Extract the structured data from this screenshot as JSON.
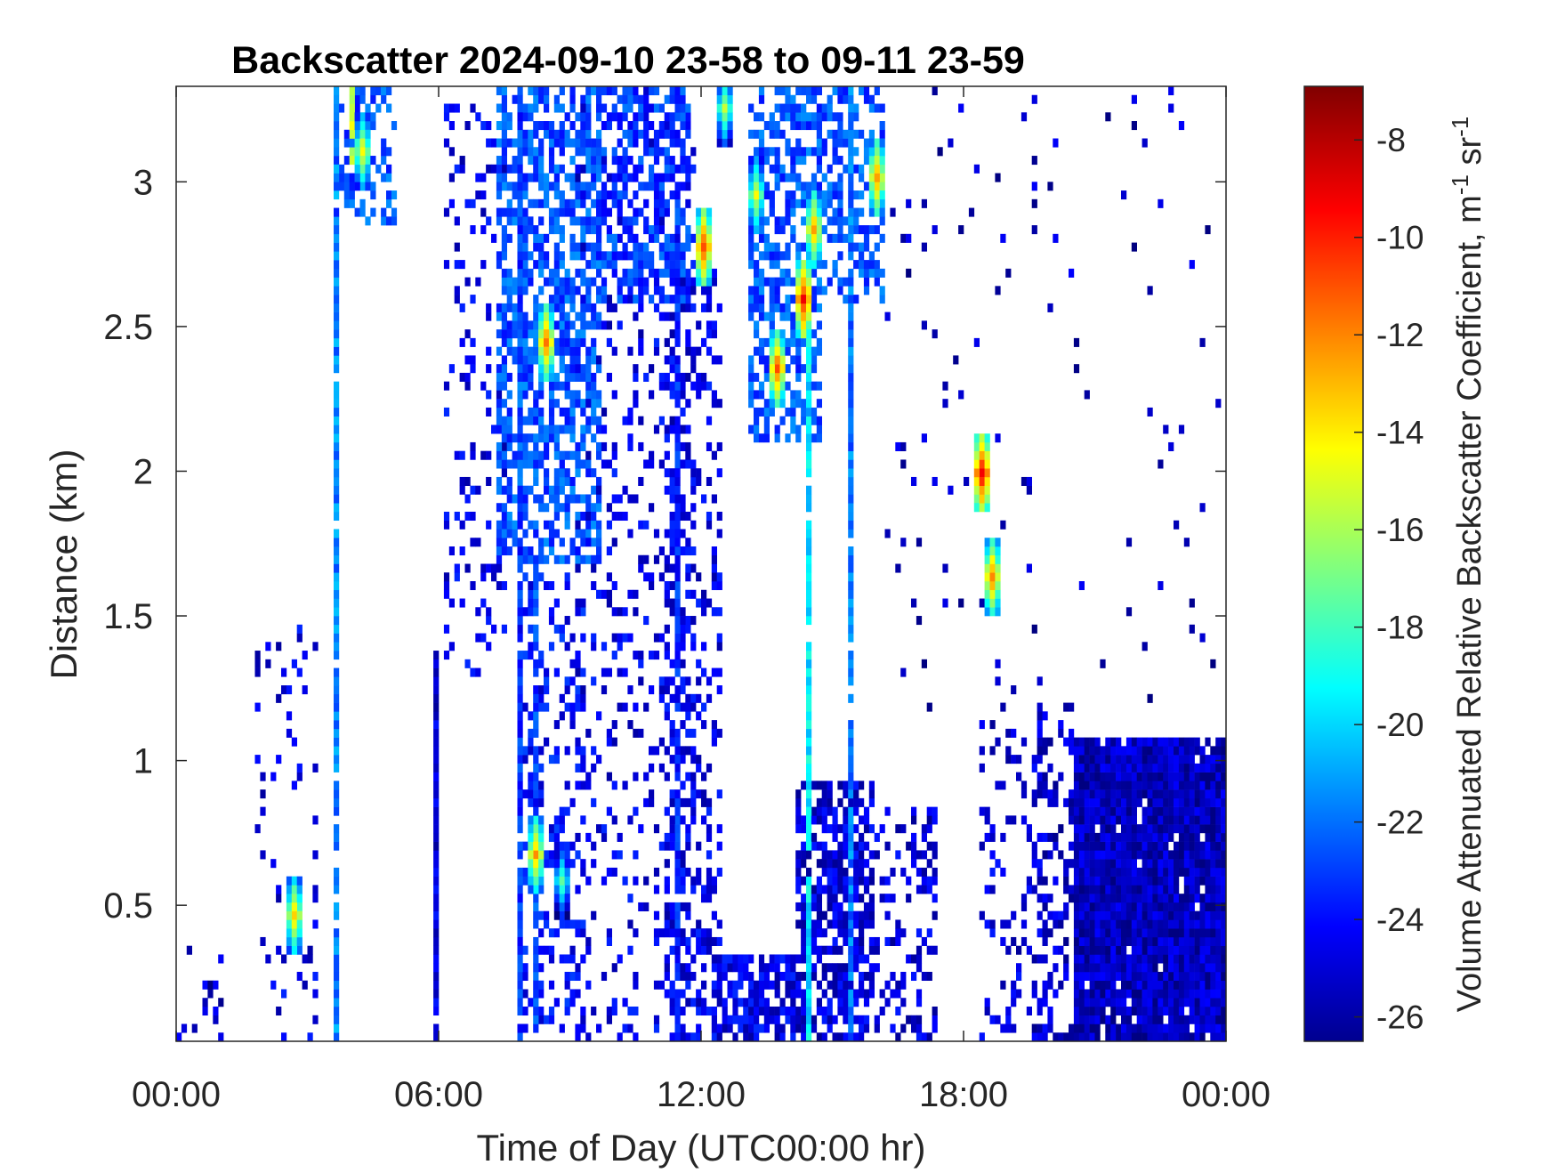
{
  "chart_data": {
    "type": "heatmap",
    "title": "Backscatter 2024-09-10 23-58 to 09-11 23-59",
    "xlabel": "Time of Day (UTC00:00 hr)",
    "ylabel": "Distance (km)",
    "x_range_hours": [
      0,
      24
    ],
    "y_range_km": [
      0.03,
      3.33
    ],
    "x_ticks": [
      {
        "value": 0,
        "label": "00:00"
      },
      {
        "value": 6,
        "label": "06:00"
      },
      {
        "value": 12,
        "label": "12:00"
      },
      {
        "value": 18,
        "label": "18:00"
      },
      {
        "value": 24,
        "label": "00:00"
      }
    ],
    "y_ticks": [
      {
        "value": 0.5,
        "label": "0.5"
      },
      {
        "value": 1,
        "label": "1"
      },
      {
        "value": 1.5,
        "label": "1.5"
      },
      {
        "value": 2,
        "label": "2"
      },
      {
        "value": 2.5,
        "label": "2.5"
      },
      {
        "value": 3,
        "label": "3"
      }
    ],
    "colorbar": {
      "label": "Volume Attenuated Relative Backscatter Coefficient, m",
      "label_sup1": "-1",
      "label_mid": " sr",
      "label_sup2": "-1",
      "range": [
        -26.5,
        -6.9
      ],
      "ticks": [
        {
          "value": -8,
          "label": "-8"
        },
        {
          "value": -10,
          "label": "-10"
        },
        {
          "value": -12,
          "label": "-12"
        },
        {
          "value": -14,
          "label": "-14"
        },
        {
          "value": -16,
          "label": "-16"
        },
        {
          "value": -18,
          "label": "-18"
        },
        {
          "value": -20,
          "label": "-20"
        },
        {
          "value": -22,
          "label": "-22"
        },
        {
          "value": -24,
          "label": "-24"
        },
        {
          "value": -26,
          "label": "-26"
        }
      ],
      "colormap": "jet",
      "colormap_stops": [
        "#00008f",
        "#0000ff",
        "#00ffff",
        "#ffff00",
        "#ff0000",
        "#800000"
      ]
    },
    "grid": false,
    "regions": [
      {
        "t0": 0,
        "t1": 1.2,
        "z0": 0.03,
        "z1": 0.5,
        "density": 0.12,
        "level": -25.2
      },
      {
        "t0": 1.8,
        "t1": 3.3,
        "z0": 0.03,
        "z1": 1.5,
        "density": 0.1,
        "level": -24.6
      },
      {
        "t0": 3.6,
        "t1": 5.1,
        "z0": 2.85,
        "z1": 3.33,
        "density": 0.45,
        "level": -22.5
      },
      {
        "t0": 6.2,
        "t1": 7.6,
        "z0": 1.3,
        "z1": 3.33,
        "density": 0.18,
        "level": -24.5
      },
      {
        "t0": 7.4,
        "t1": 9.8,
        "z0": 1.7,
        "z1": 3.33,
        "density": 0.6,
        "level": -22.5
      },
      {
        "t0": 7.8,
        "t1": 9.4,
        "z0": 0.03,
        "z1": 1.7,
        "density": 0.3,
        "level": -24
      },
      {
        "t0": 9.2,
        "t1": 11.9,
        "z0": 0.03,
        "z1": 3.33,
        "density": 0.18,
        "level": -24.5
      },
      {
        "t0": 9.6,
        "t1": 11.8,
        "z0": 2.6,
        "z1": 3.33,
        "density": 0.55,
        "level": -23
      },
      {
        "t0": 11.2,
        "t1": 12.5,
        "z0": 0.03,
        "z1": 2.7,
        "density": 0.3,
        "level": -24.5
      },
      {
        "t0": 12.3,
        "t1": 14.2,
        "z0": 0.03,
        "z1": 0.35,
        "density": 0.75,
        "level": -24.5
      },
      {
        "t0": 13.1,
        "t1": 14.8,
        "z0": 2.1,
        "z1": 3.33,
        "density": 0.55,
        "level": -22.5
      },
      {
        "t0": 14.2,
        "t1": 16.0,
        "z0": 0.03,
        "z1": 0.95,
        "density": 0.6,
        "level": -24.8
      },
      {
        "t0": 15.0,
        "t1": 17.4,
        "z0": 0.03,
        "z1": 0.85,
        "density": 0.3,
        "level": -24.8
      },
      {
        "t0": 14.7,
        "t1": 16.2,
        "z0": 2.6,
        "z1": 3.33,
        "density": 0.45,
        "level": -22.5
      },
      {
        "t0": 18.4,
        "t1": 19.6,
        "z0": 0.03,
        "z1": 1.15,
        "density": 0.22,
        "level": -24.8
      },
      {
        "t0": 19.6,
        "t1": 20.6,
        "z0": 0.03,
        "z1": 1.25,
        "density": 0.35,
        "level": -25
      },
      {
        "t0": 20.6,
        "t1": 24,
        "z0": 0.03,
        "z1": 1.1,
        "density": 0.97,
        "level": -25.3
      },
      {
        "t0": 16.0,
        "t1": 24,
        "z0": 1.2,
        "z1": 3.33,
        "density": 0.025,
        "level": -25.4
      }
    ],
    "columns": [
      {
        "t": 3.6,
        "z0": 0.03,
        "z1": 3.33,
        "level": -21.5
      },
      {
        "t": 4.0,
        "z0": 3.05,
        "z1": 3.33,
        "level": -15
      },
      {
        "t": 7.9,
        "z0": 0.03,
        "z1": 3.33,
        "level": -23.2
      },
      {
        "t": 8.2,
        "z0": 0.03,
        "z1": 1.75,
        "level": -22.8
      },
      {
        "t": 11.4,
        "z0": 0.03,
        "z1": 3.0,
        "level": -23.5
      },
      {
        "t": 14.5,
        "z0": 0.03,
        "z1": 2.6,
        "level": -19.5
      },
      {
        "t": 15.4,
        "z0": 0.03,
        "z1": 3.33,
        "level": -21.8
      },
      {
        "t": 5.9,
        "z0": 0.03,
        "z1": 1.4,
        "level": -24.8
      }
    ],
    "hotspots": [
      {
        "t": 4.25,
        "z": 3.1,
        "level": -14
      },
      {
        "t": 2.7,
        "z": 0.45,
        "level": -13
      },
      {
        "t": 8.5,
        "z": 2.45,
        "level": -11.5
      },
      {
        "t": 8.2,
        "z": 0.68,
        "level": -12.5
      },
      {
        "t": 8.8,
        "z": 0.6,
        "level": -17
      },
      {
        "t": 12.0,
        "z": 2.78,
        "level": -10.5
      },
      {
        "t": 13.7,
        "z": 2.35,
        "level": -11
      },
      {
        "t": 14.6,
        "z": 2.84,
        "level": -12.5
      },
      {
        "t": 14.3,
        "z": 2.6,
        "level": -9.5
      },
      {
        "t": 16.0,
        "z": 3.0,
        "level": -12
      },
      {
        "t": 18.4,
        "z": 2.0,
        "level": -9
      },
      {
        "t": 18.7,
        "z": 1.65,
        "level": -11.5
      },
      {
        "t": 13.3,
        "z": 2.95,
        "level": -14.5
      },
      {
        "t": 12.5,
        "z": 3.25,
        "level": -15.5
      }
    ]
  }
}
